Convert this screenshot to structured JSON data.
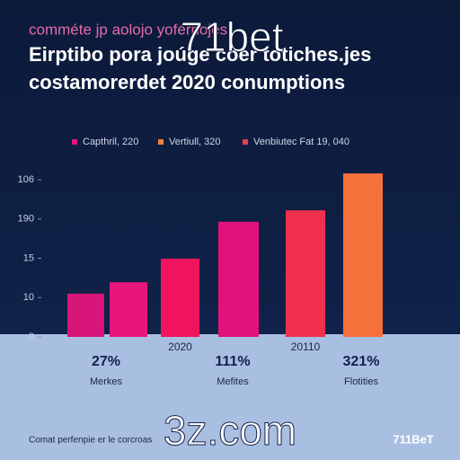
{
  "chart_data": {
    "type": "bar",
    "overline": "comméte jp aolojo yoférnojes",
    "title": "Eirptibo pora joúge coer totiches.jes",
    "subtitle": "costamorerdet 2020 conumptions",
    "legend": [
      {
        "name": "Capthril, 220",
        "color": "#e0147a"
      },
      {
        "name": "Vertiull, 320",
        "color": "#f5803a"
      },
      {
        "name": "Venbiutec Fat 19, 040",
        "color": "#ee3a4e"
      }
    ],
    "categories": [
      null,
      null,
      "2020",
      null,
      "20110",
      null
    ],
    "values": [
      1.1,
      1.39,
      1.99,
      2.93,
      3.22,
      4.16
    ],
    "colors": [
      "#d8167a",
      "#e8167c",
      "#f0145e",
      "#e0127c",
      "#f0304c",
      "#f5703a"
    ],
    "ylim": [
      0,
      4.2
    ],
    "yticks": [
      {
        "value": 0,
        "label": "0"
      },
      {
        "value": 1,
        "label": "10"
      },
      {
        "value": 2,
        "label": "15"
      },
      {
        "value": 3,
        "label": "190"
      },
      {
        "value": 4,
        "label": "106"
      }
    ]
  },
  "stats": [
    {
      "value": "27%",
      "label": "Merkes"
    },
    {
      "value": "111%",
      "label": "Mefites"
    },
    {
      "value": "321%",
      "label": "Flotities"
    }
  ],
  "footer": "Comat perfenpie er le corcroas",
  "brand": "711BeT",
  "watermarks": [
    "71bet",
    "3z.com"
  ]
}
